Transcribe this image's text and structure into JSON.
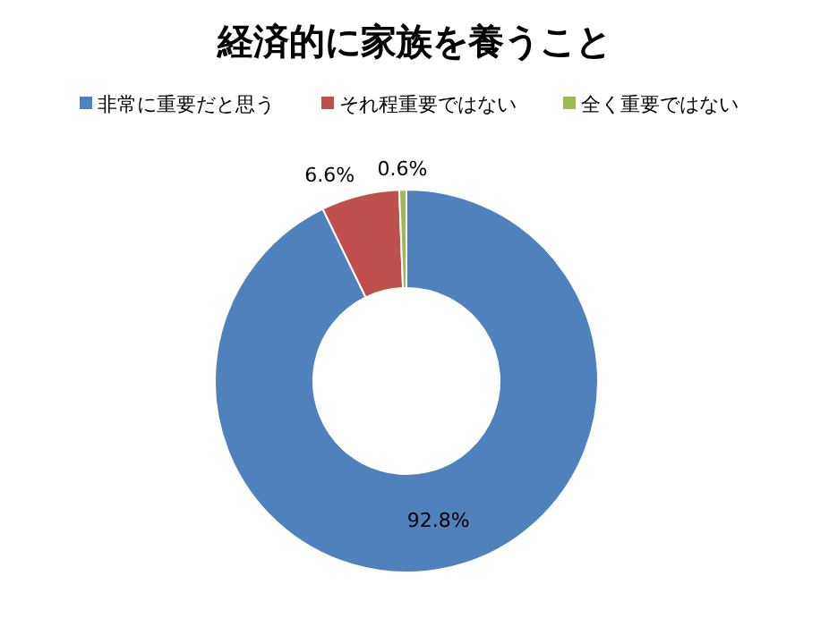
{
  "chart_data": {
    "type": "donut",
    "title": "経済的に家族を養うこと",
    "categories": [
      "非常に重要だと思う",
      "それ程重要ではない",
      "全く重要ではない"
    ],
    "values": [
      92.8,
      6.6,
      0.6
    ],
    "colors": [
      "#4f81bd",
      "#c0504d",
      "#9bbb59"
    ],
    "value_labels": [
      "92.8%",
      "6.6%",
      "0.6%"
    ],
    "legend": "top"
  }
}
